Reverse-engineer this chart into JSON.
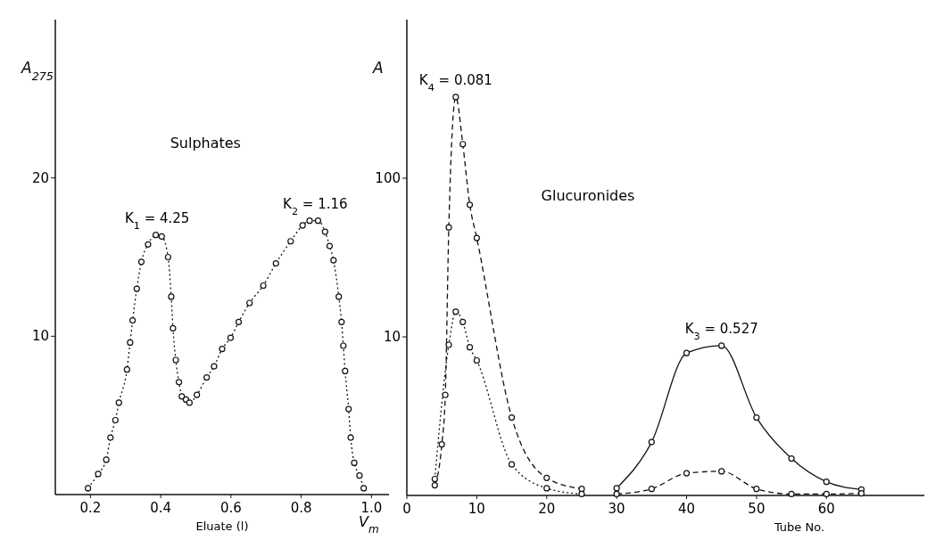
{
  "chart_data": [
    {
      "type": "line",
      "title": "Sulphates",
      "xlabel": "Eluate (l)",
      "ylabel": "A$_{275}$",
      "xlim": [
        0.1,
        1.05
      ],
      "ylim": [
        0,
        30
      ],
      "xticks": [
        0.2,
        0.4,
        0.6,
        0.8,
        {
          "value": 1,
          "label": "1.0"
        }
      ],
      "yticks": [
        10,
        20
      ],
      "grid": false,
      "marker": "circle",
      "series": [
        {
          "color": "#111111",
          "line_style": "dotted",
          "x": [
            0.193,
            0.222,
            0.245,
            0.257,
            0.271,
            0.281,
            0.304,
            0.313,
            0.32,
            0.332,
            0.345,
            0.364,
            0.386,
            0.403,
            0.421,
            0.43,
            0.435,
            0.443,
            0.452,
            0.46,
            0.472,
            0.482,
            0.503,
            0.531,
            0.552,
            0.575,
            0.599,
            0.622,
            0.653,
            0.692,
            0.728,
            0.77,
            0.804,
            0.824,
            0.848,
            0.868,
            0.881,
            0.892,
            0.907,
            0.915,
            0.92,
            0.925,
            0.935,
            0.941,
            0.951,
            0.966,
            0.978
          ],
          "values": [
            0.4,
            1.3,
            2.2,
            3.6,
            4.7,
            5.8,
            7.9,
            9.6,
            11,
            13,
            14.7,
            15.8,
            16.4,
            16.3,
            15,
            12.5,
            10.5,
            8.5,
            7.1,
            6.2,
            6,
            5.8,
            6.3,
            7.4,
            8.1,
            9.2,
            9.9,
            10.9,
            12.1,
            13.2,
            14.6,
            16,
            17,
            17.3,
            17.3,
            16.6,
            15.7,
            14.8,
            12.5,
            10.9,
            9.4,
            7.8,
            5.4,
            3.6,
            2,
            1.2,
            0.4
          ]
        }
      ],
      "annotations": [
        {
          "text": "K$_{1}$ = 4.25",
          "x": 0.39,
          "y": 16.4
        },
        {
          "text": "K$_{2}$ = 1.16",
          "x": 0.84,
          "y": 17.3
        },
        "V$_{m}$"
      ]
    },
    {
      "type": "line",
      "title": "Glucuronides",
      "xlabel": "Tube No.",
      "ylabel": "A",
      "log": "y",
      "xlim": [
        0,
        74
      ],
      "ylim": [
        1,
        1000
      ],
      "xticks": [
        0,
        10,
        20,
        30,
        40,
        50,
        60
      ],
      "yticks": [
        10,
        100
      ],
      "grid": false,
      "marker": "circle",
      "series": [
        {
          "color": "#111111",
          "line_style": "dashed",
          "x": [
            4,
            5,
            5.5,
            6,
            7,
            8,
            9,
            10,
            15,
            20,
            25
          ],
          "values": [
            1.16,
            2.1,
            4.3,
            49,
            325,
            164,
            68,
            42,
            3.1,
            1.29,
            1.1
          ]
        },
        {
          "color": "#111111",
          "line_style": "dotted",
          "x": [
            4,
            6,
            7,
            8,
            9,
            10,
            15,
            20,
            25
          ],
          "values": [
            1.27,
            8.9,
            14.4,
            12.4,
            8.6,
            7.1,
            1.57,
            1.11,
            1.02
          ]
        },
        {
          "color": "#111111",
          "line_style": "solid",
          "x": [
            30,
            35,
            40,
            45,
            50,
            55,
            60,
            65
          ],
          "values": [
            1.11,
            2.17,
            7.9,
            8.8,
            3.1,
            1.71,
            1.22,
            1.09
          ]
        },
        {
          "color": "#111111",
          "line_style": "dashed",
          "x": [
            30,
            35,
            40,
            45,
            50,
            55,
            60,
            65
          ],
          "values": [
            1.02,
            1.1,
            1.38,
            1.42,
            1.1,
            1.02,
            1.02,
            1.03
          ]
        }
      ],
      "annotations": [
        {
          "text": "K$_{4}$ = 0.081",
          "x": 7,
          "y": 325
        },
        {
          "text": "K$_{3}$ = 0.527",
          "x": 45,
          "y": 8.8
        }
      ]
    }
  ]
}
